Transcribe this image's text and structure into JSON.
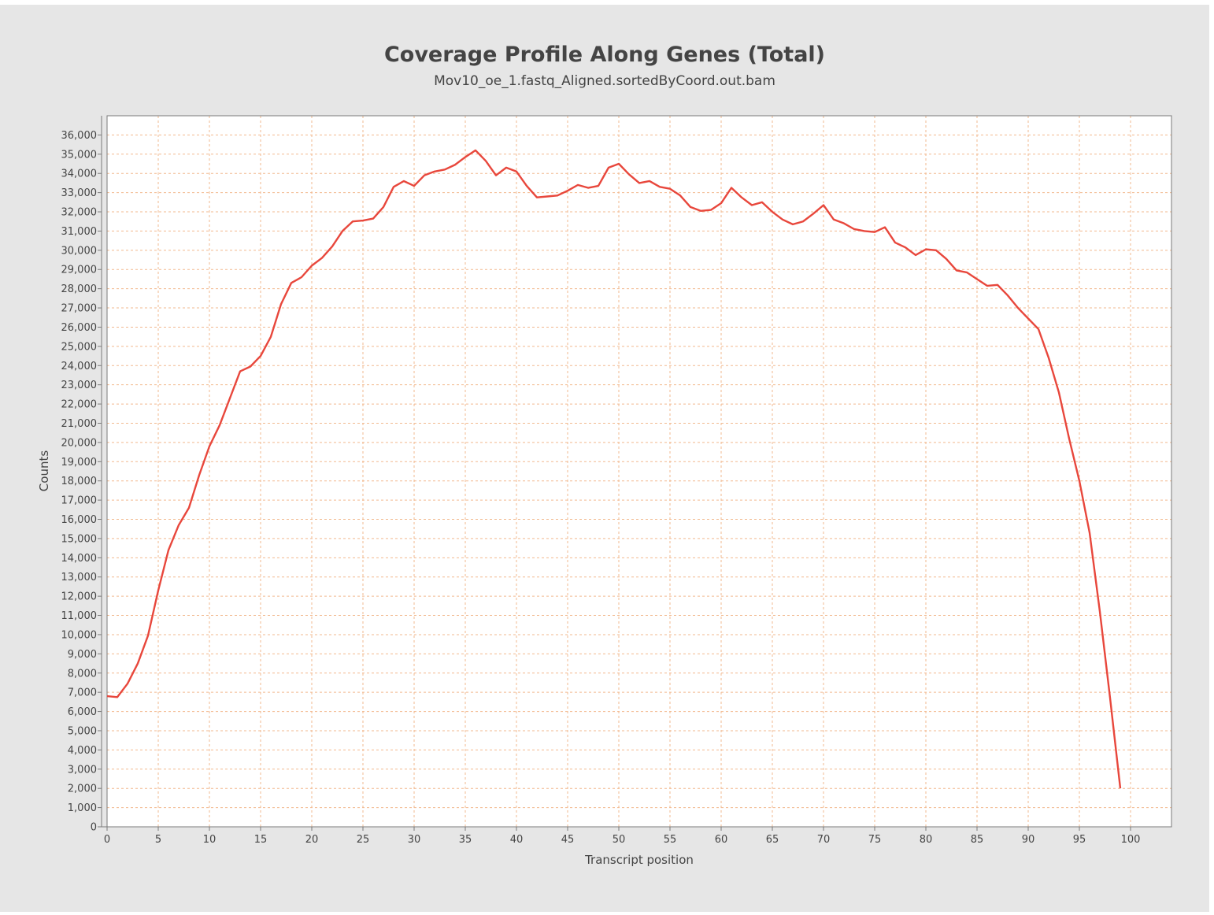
{
  "chart_data": {
    "type": "line",
    "title": "Coverage Profile Along Genes (Total)",
    "subtitle": "Mov10_oe_1.fastq_Aligned.sortedByCoord.out.bam",
    "xlabel": "Transcript position",
    "ylabel": "Counts",
    "xlim": [
      0,
      104
    ],
    "ylim": [
      0,
      37000
    ],
    "x_ticks": [
      0,
      5,
      10,
      15,
      20,
      25,
      30,
      35,
      40,
      45,
      50,
      55,
      60,
      65,
      70,
      75,
      80,
      85,
      90,
      95,
      100
    ],
    "y_ticks": [
      0,
      1000,
      2000,
      3000,
      4000,
      5000,
      6000,
      7000,
      8000,
      9000,
      10000,
      11000,
      12000,
      13000,
      14000,
      15000,
      16000,
      17000,
      18000,
      19000,
      20000,
      21000,
      22000,
      23000,
      24000,
      25000,
      26000,
      27000,
      28000,
      29000,
      30000,
      31000,
      32000,
      33000,
      34000,
      35000,
      36000
    ],
    "y_tick_labels": [
      "0",
      "1,000",
      "2,000",
      "3,000",
      "4,000",
      "5,000",
      "6,000",
      "7,000",
      "8,000",
      "9,000",
      "10,000",
      "11,000",
      "12,000",
      "13,000",
      "14,000",
      "15,000",
      "16,000",
      "17,000",
      "18,000",
      "19,000",
      "20,000",
      "21,000",
      "22,000",
      "23,000",
      "24,000",
      "25,000",
      "26,000",
      "27,000",
      "28,000",
      "29,000",
      "30,000",
      "31,000",
      "32,000",
      "33,000",
      "34,000",
      "35,000",
      "36,000"
    ],
    "grid": true,
    "legend": "none",
    "line_color": "#e8473c",
    "series": [
      {
        "x": [
          0,
          1,
          2,
          3,
          4,
          5,
          6,
          7,
          8,
          9,
          10,
          11,
          12,
          13,
          14,
          15,
          16,
          17,
          18,
          19,
          20,
          21,
          22,
          23,
          24,
          25,
          26,
          27,
          28,
          29,
          30,
          31,
          32,
          33,
          34,
          35,
          36,
          37,
          38,
          39,
          40,
          41,
          42,
          43,
          44,
          45,
          46,
          47,
          48,
          49,
          50,
          51,
          52,
          53,
          54,
          55,
          56,
          57,
          58,
          59,
          60,
          61,
          62,
          63,
          64,
          65,
          66,
          67,
          68,
          69,
          70,
          71,
          72,
          73,
          74,
          75,
          76,
          77,
          78,
          79,
          80,
          81,
          82,
          83,
          84,
          85,
          86,
          87,
          88,
          89,
          90,
          91,
          92,
          93,
          94,
          95,
          96,
          97,
          98,
          99
        ],
        "values": [
          6800,
          6750,
          7450,
          8500,
          9950,
          12300,
          14400,
          15700,
          16600,
          18300,
          19800,
          20900,
          22300,
          23700,
          23950,
          24500,
          25500,
          27200,
          28300,
          28600,
          29200,
          29600,
          30200,
          31000,
          31500,
          31550,
          31650,
          32250,
          33300,
          33600,
          33350,
          33900,
          34100,
          34200,
          34450,
          34850,
          35200,
          34650,
          33900,
          34300,
          34100,
          33350,
          32750,
          32800,
          32850,
          33100,
          33400,
          33250,
          33350,
          34300,
          34500,
          33950,
          33500,
          33600,
          33300,
          33200,
          32850,
          32250,
          32050,
          32100,
          32450,
          33250,
          32750,
          32350,
          32500,
          32000,
          31600,
          31350,
          31500,
          31900,
          32350,
          31600,
          31400,
          31100,
          31000,
          30950,
          31200,
          30400,
          30150,
          29750,
          30050,
          30000,
          29550,
          28950,
          28850,
          28500,
          28150,
          28200,
          27650,
          27000,
          26450,
          25900,
          24400,
          22600,
          20200,
          18000,
          15300,
          11200,
          6700,
          2000
        ]
      }
    ]
  }
}
